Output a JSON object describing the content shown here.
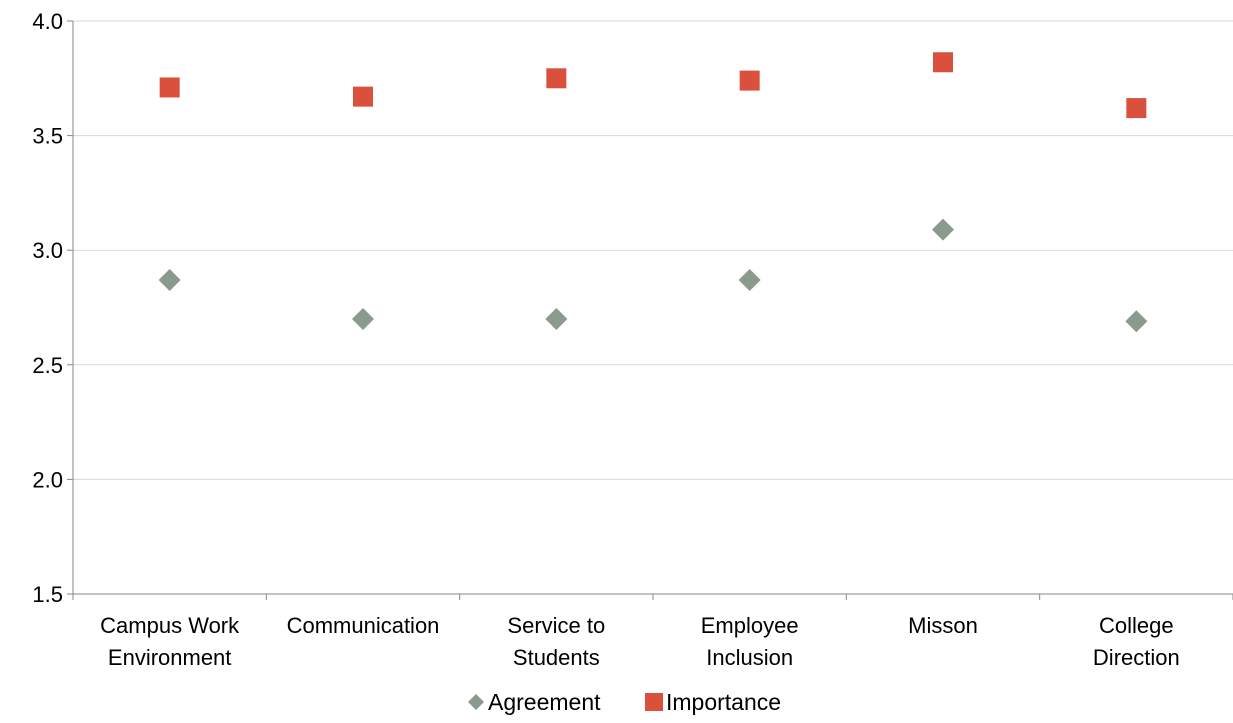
{
  "chart_data": {
    "type": "scatter",
    "title": "",
    "xlabel": "",
    "ylabel": "",
    "categories": [
      [
        "Campus Work",
        "Environment"
      ],
      [
        "Communication"
      ],
      [
        "Service to",
        "Students"
      ],
      [
        "Employee",
        "Inclusion"
      ],
      [
        "Misson"
      ],
      [
        "College",
        "Direction"
      ]
    ],
    "series": [
      {
        "name": "Agreement",
        "marker": "diamond",
        "color": "#8a9a8d",
        "values": [
          2.87,
          2.7,
          2.7,
          2.87,
          3.09,
          2.69
        ]
      },
      {
        "name": "Importance",
        "marker": "square",
        "color": "#d9503c",
        "values": [
          3.71,
          3.67,
          3.75,
          3.74,
          3.82,
          3.62
        ]
      }
    ],
    "ylim": [
      1.5,
      4.0
    ],
    "yticks": [
      "1.5",
      "2.0",
      "2.5",
      "3.0",
      "3.5",
      "4.0"
    ],
    "grid": true,
    "legend_position": "bottom"
  }
}
